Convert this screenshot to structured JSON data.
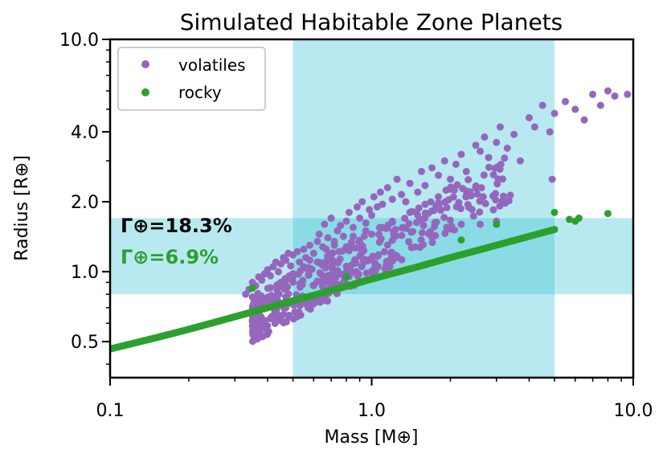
{
  "chart_data": {
    "type": "scatter",
    "title": "Simulated Habitable Zone Planets",
    "xlabel": "Mass [M⊕]",
    "ylabel": "Radius [R⊕]",
    "xscale": "log",
    "yscale": "log",
    "xlim": [
      0.1,
      10.0
    ],
    "ylim": [
      0.35,
      10.0
    ],
    "xticks": [
      0.1,
      1.0,
      10.0
    ],
    "xtick_labels": [
      "0.1",
      "1.0",
      "10.0"
    ],
    "yticks": [
      0.5,
      1.0,
      2.0,
      4.0,
      10.0
    ],
    "ytick_labels": [
      "0.5",
      "1.0",
      "2.0",
      "4.0",
      "10.0"
    ],
    "colors": {
      "volatiles": "#9467bd",
      "rocky": "#2ca02c",
      "band": "#b9e9f0",
      "overlap": "#8adbe6"
    },
    "shaded_regions": [
      {
        "name": "mass-band",
        "axis": "x",
        "range": [
          0.5,
          5.0
        ]
      },
      {
        "name": "radius-band",
        "axis": "y",
        "range": [
          0.8,
          1.7
        ]
      }
    ],
    "legend_position": "top-left",
    "series": [
      {
        "name": "volatiles",
        "label": "volatiles",
        "points": [
          [
            0.33,
            0.8
          ],
          [
            0.34,
            0.84
          ],
          [
            0.35,
            0.9
          ],
          [
            0.36,
            0.87
          ],
          [
            0.37,
            0.95
          ],
          [
            0.38,
            0.92
          ],
          [
            0.39,
            0.98
          ],
          [
            0.4,
            1.02
          ],
          [
            0.41,
            0.96
          ],
          [
            0.42,
            1.05
          ],
          [
            0.43,
            1.1
          ],
          [
            0.44,
            1.0
          ],
          [
            0.45,
            1.08
          ],
          [
            0.46,
            1.15
          ],
          [
            0.47,
            1.12
          ],
          [
            0.48,
            1.2
          ],
          [
            0.49,
            1.06
          ],
          [
            0.5,
            1.18
          ],
          [
            0.52,
            1.22
          ],
          [
            0.53,
            1.1
          ],
          [
            0.55,
            1.25
          ],
          [
            0.56,
            1.15
          ],
          [
            0.58,
            1.3
          ],
          [
            0.6,
            1.2
          ],
          [
            0.62,
            1.35
          ],
          [
            0.63,
            1.45
          ],
          [
            0.65,
            1.28
          ],
          [
            0.66,
            1.6
          ],
          [
            0.68,
            1.4
          ],
          [
            0.7,
            1.7
          ],
          [
            0.72,
            1.35
          ],
          [
            0.74,
            1.5
          ],
          [
            0.76,
            1.58
          ],
          [
            0.78,
            1.42
          ],
          [
            0.8,
            1.65
          ],
          [
            0.82,
            1.8
          ],
          [
            0.85,
            1.55
          ],
          [
            0.88,
            1.9
          ],
          [
            0.9,
            1.7
          ],
          [
            0.92,
            2.0
          ],
          [
            0.95,
            1.62
          ],
          [
            0.98,
            1.85
          ],
          [
            1.0,
            1.75
          ],
          [
            1.02,
            2.1
          ],
          [
            1.05,
            1.9
          ],
          [
            1.08,
            2.2
          ],
          [
            1.1,
            1.95
          ],
          [
            1.15,
            2.3
          ],
          [
            1.2,
            2.05
          ],
          [
            1.25,
            2.5
          ],
          [
            1.3,
            2.15
          ],
          [
            1.35,
            2.0
          ],
          [
            1.4,
            2.4
          ],
          [
            1.5,
            2.2
          ],
          [
            1.55,
            2.7
          ],
          [
            1.6,
            2.35
          ],
          [
            1.7,
            2.8
          ],
          [
            1.8,
            2.6
          ],
          [
            1.9,
            3.0
          ],
          [
            2.0,
            2.5
          ],
          [
            2.1,
            2.9
          ],
          [
            2.2,
            3.2
          ],
          [
            2.3,
            2.7
          ],
          [
            2.5,
            3.5
          ],
          [
            2.6,
            3.3
          ],
          [
            2.7,
            3.8
          ],
          [
            2.8,
            3.1
          ],
          [
            3.0,
            3.6
          ],
          [
            3.1,
            4.2
          ],
          [
            3.3,
            3.4
          ],
          [
            3.5,
            3.9
          ],
          [
            3.7,
            3.0
          ],
          [
            4.0,
            4.6
          ],
          [
            4.2,
            4.2
          ],
          [
            4.5,
            5.2
          ],
          [
            4.8,
            4.0
          ],
          [
            5.0,
            4.8
          ],
          [
            5.5,
            5.4
          ],
          [
            6.0,
            5.0
          ],
          [
            6.5,
            4.5
          ],
          [
            7.0,
            5.8
          ],
          [
            7.5,
            5.2
          ],
          [
            8.0,
            6.0
          ],
          [
            8.5,
            5.7
          ],
          [
            9.5,
            5.8
          ],
          [
            0.62,
            1.1
          ],
          [
            0.7,
            1.18
          ],
          [
            0.75,
            1.22
          ],
          [
            0.8,
            1.28
          ],
          [
            0.9,
            1.35
          ],
          [
            1.0,
            1.45
          ],
          [
            1.1,
            1.55
          ],
          [
            1.2,
            1.65
          ],
          [
            1.4,
            1.8
          ],
          [
            1.6,
            1.95
          ],
          [
            1.8,
            2.1
          ],
          [
            2.0,
            2.3
          ],
          [
            2.2,
            1.6
          ],
          [
            2.6,
            1.6
          ],
          [
            3.0,
            1.65
          ],
          [
            4.9,
            2.5
          ],
          [
            0.45,
            0.9
          ],
          [
            0.5,
            0.98
          ],
          [
            0.55,
            1.05
          ],
          [
            0.58,
            1.12
          ],
          [
            0.67,
            1.25
          ],
          [
            0.72,
            1.3
          ],
          [
            0.85,
            1.42
          ],
          [
            0.95,
            1.5
          ]
        ]
      },
      {
        "name": "rocky",
        "label": "rocky",
        "points": [
          [
            0.1,
            0.465
          ],
          [
            0.15,
            0.52
          ],
          [
            0.2,
            0.565
          ],
          [
            0.3,
            0.64
          ],
          [
            0.4,
            0.7
          ],
          [
            0.5,
            0.75
          ],
          [
            0.7,
            0.83
          ],
          [
            1.0,
            0.93
          ],
          [
            1.5,
            1.05
          ],
          [
            2.0,
            1.15
          ],
          [
            3.0,
            1.3
          ],
          [
            4.0,
            1.42
          ],
          [
            5.0,
            1.52
          ],
          [
            0.35,
            0.85
          ],
          [
            0.8,
            0.95
          ],
          [
            2.2,
            1.37
          ],
          [
            3.0,
            1.6
          ],
          [
            5.0,
            1.8
          ],
          [
            5.7,
            1.68
          ],
          [
            6.0,
            1.65
          ],
          [
            6.2,
            1.7
          ],
          [
            8.0,
            1.78
          ]
        ]
      }
    ],
    "annotations": [
      {
        "text": "Γ⊕=18.3%",
        "color": "#000000"
      },
      {
        "text": "Γ⊕=6.9%",
        "color": "#2ca02c"
      }
    ]
  }
}
